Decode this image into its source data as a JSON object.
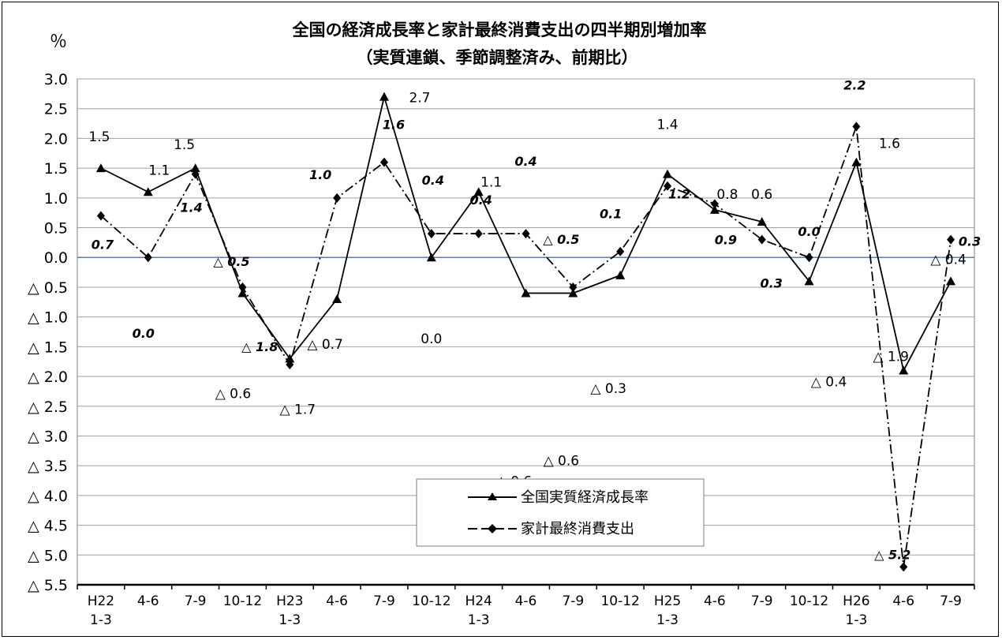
{
  "chart_data": {
    "type": "line",
    "title": "全国の経済成長率と家計最終消費支出の四半期別増加率",
    "subtitle": "（実質連鎖、季節調整済み、前期比）",
    "ylabel": "％",
    "ylim": [
      -5.5,
      3.0
    ],
    "grid": true,
    "legend_position": "lower-right",
    "y_ticks": [
      {
        "value": 3.0,
        "label": "3.0"
      },
      {
        "value": 2.5,
        "label": "2.5"
      },
      {
        "value": 2.0,
        "label": "2.0"
      },
      {
        "value": 1.5,
        "label": "1.5"
      },
      {
        "value": 1.0,
        "label": "1.0"
      },
      {
        "value": 0.5,
        "label": "0.5"
      },
      {
        "value": 0.0,
        "label": "0.0"
      },
      {
        "value": -0.5,
        "label": "△ 0.5"
      },
      {
        "value": -1.0,
        "label": "△ 1.0"
      },
      {
        "value": -1.5,
        "label": "△ 1.5"
      },
      {
        "value": -2.0,
        "label": "△ 2.0"
      },
      {
        "value": -2.5,
        "label": "△ 2.5"
      },
      {
        "value": -3.0,
        "label": "△ 3.0"
      },
      {
        "value": -3.5,
        "label": "△ 3.5"
      },
      {
        "value": -4.0,
        "label": "△ 4.0"
      },
      {
        "value": -4.5,
        "label": "△ 4.5"
      },
      {
        "value": -5.0,
        "label": "△ 5.0"
      },
      {
        "value": -5.5,
        "label": "△ 5.5"
      }
    ],
    "categories": [
      {
        "line1": "H22",
        "line2": "1-3"
      },
      {
        "line1": "4-6",
        "line2": ""
      },
      {
        "line1": "7-9",
        "line2": ""
      },
      {
        "line1": "10-12",
        "line2": ""
      },
      {
        "line1": "H23",
        "line2": "1-3"
      },
      {
        "line1": "4-6",
        "line2": ""
      },
      {
        "line1": "7-9",
        "line2": ""
      },
      {
        "line1": "10-12",
        "line2": ""
      },
      {
        "line1": "H24",
        "line2": "1-3"
      },
      {
        "line1": "4-6",
        "line2": ""
      },
      {
        "line1": "7-9",
        "line2": ""
      },
      {
        "line1": "10-12",
        "line2": ""
      },
      {
        "line1": "H25",
        "line2": "1-3"
      },
      {
        "line1": "4-6",
        "line2": ""
      },
      {
        "line1": "7-9",
        "line2": ""
      },
      {
        "line1": "10-12",
        "line2": ""
      },
      {
        "line1": "H26",
        "line2": "1-3"
      },
      {
        "line1": "4-6",
        "line2": ""
      },
      {
        "line1": "7-9",
        "line2": ""
      }
    ],
    "series": [
      {
        "name": "全国実質経済成長率",
        "marker": "triangle",
        "line_style": "solid",
        "values": [
          1.5,
          1.1,
          1.5,
          -0.6,
          -1.7,
          -0.7,
          2.7,
          0.0,
          1.1,
          -0.6,
          -0.6,
          -0.3,
          1.4,
          0.8,
          0.6,
          -0.4,
          1.6,
          -1.9,
          -0.4
        ],
        "labels": [
          "1.5",
          "1.1",
          "1.5",
          "△ 0.6",
          "△ 1.7",
          "△ 0.7",
          "2.7",
          "0.0",
          "1.1",
          "△ 0.6",
          "△ 0.6",
          "△ 0.3",
          "1.4",
          "0.8",
          "0.6",
          "△ 0.4",
          "1.6",
          "△ 1.9",
          "△ 0.4"
        ]
      },
      {
        "name": "家計最終消費支出",
        "marker": "diamond",
        "line_style": "dash-dot",
        "values": [
          0.7,
          0.0,
          1.4,
          -0.5,
          -1.8,
          1.0,
          1.6,
          0.4,
          0.4,
          0.4,
          -0.5,
          0.1,
          1.2,
          0.9,
          0.3,
          0.0,
          2.2,
          -5.2,
          0.3
        ],
        "labels": [
          "0.7",
          "0.0",
          "1.4",
          "△ 0.5",
          "△ 1.8",
          "1.0",
          "1.6",
          "0.4",
          "0.4",
          "0.4",
          "△ 0.5",
          "0.1",
          "1.2",
          "0.9",
          "0.3",
          "0.0",
          "2.2",
          "△ 5.2",
          "0.3"
        ]
      }
    ],
    "colors": {
      "gridline": "#a0a0a0",
      "zero_line": "#5b7fb0",
      "series": "#000000"
    }
  }
}
